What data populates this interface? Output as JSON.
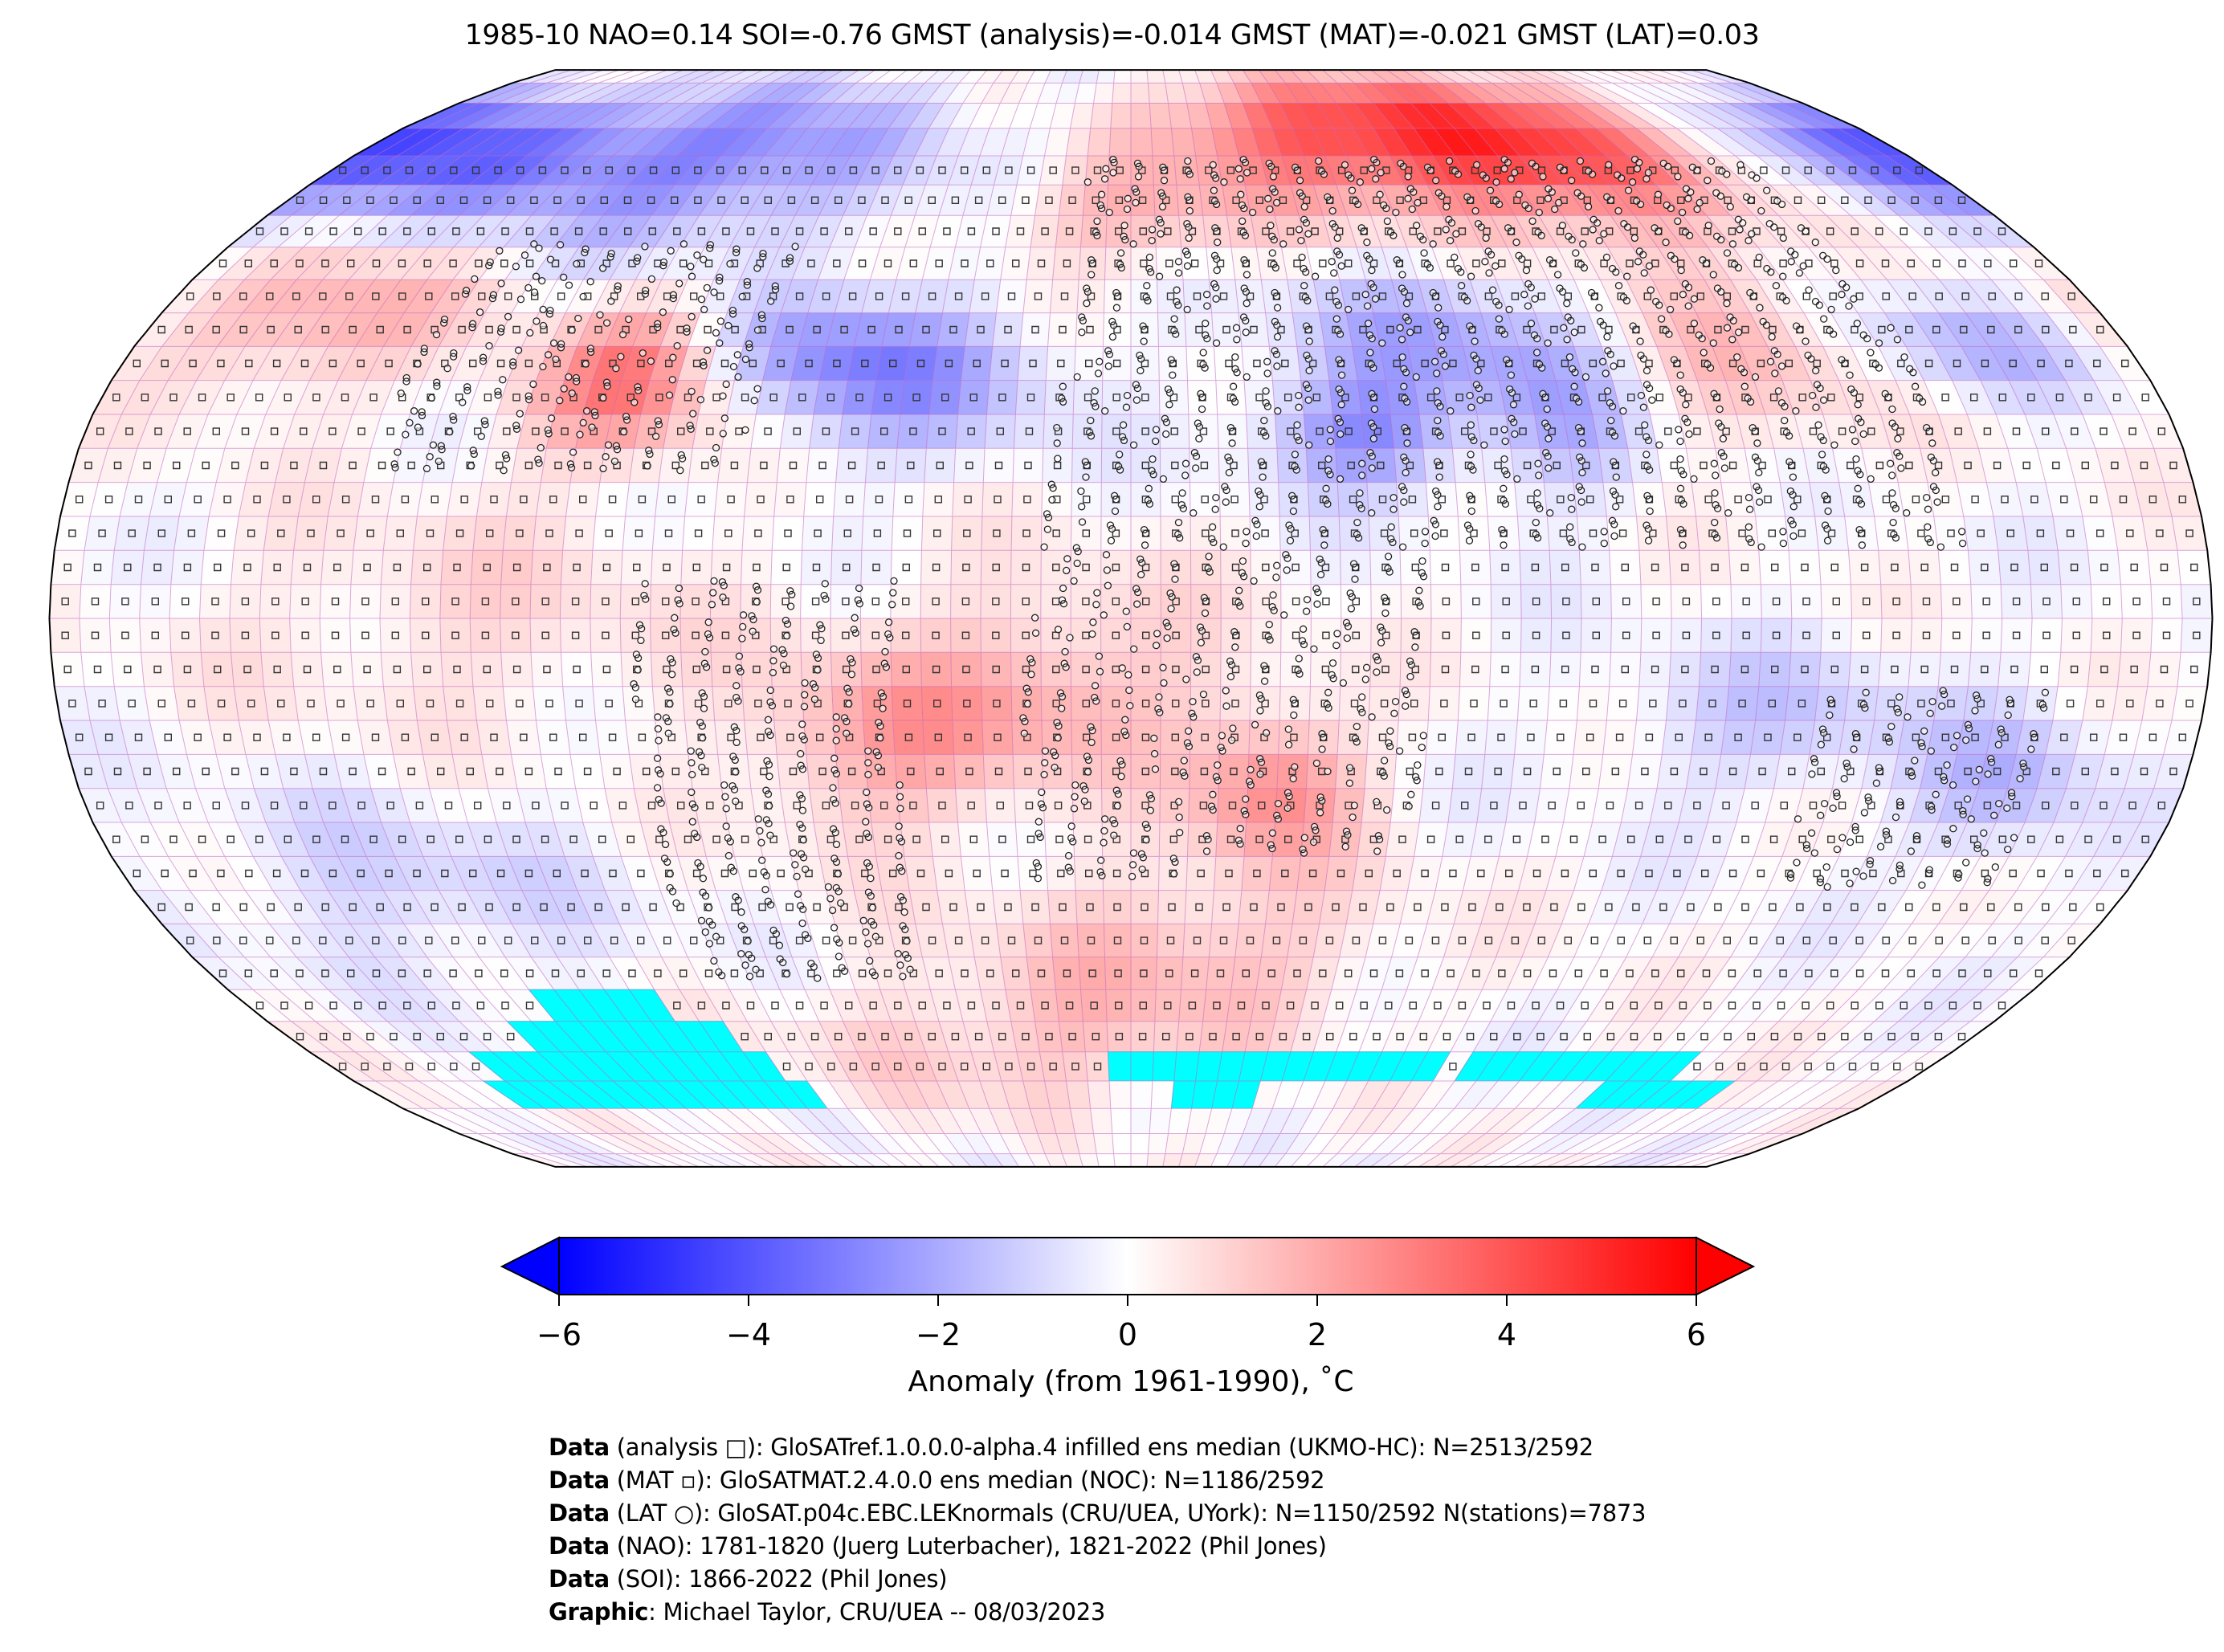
{
  "title": "1985-10 NAO=0.14 SOI=-0.76 GMST (analysis)=-0.014 GMST (MAT)=-0.021 GMST (LAT)=0.03",
  "colors": {
    "negative_max": "#0000ff",
    "positive_max": "#ff0000",
    "neutral": "#ffffff",
    "missing_infill": "#00ffff",
    "gridlines": "#c060c0"
  },
  "colorbar": {
    "min": -6,
    "max": 6,
    "extend": "both",
    "ticks": [
      "−6",
      "−4",
      "−2",
      "0",
      "2",
      "4",
      "6"
    ],
    "label": "Anomaly (from 1961-1990), ˚C"
  },
  "footer": [
    {
      "bold": "Data",
      "text": " (analysis □): GloSATref.1.0.0.0-alpha.4 infilled ens median (UKMO-HC): N=2513/2592"
    },
    {
      "bold": "Data",
      "text": " (MAT ▫): GloSATMAT.2.4.0.0 ens median (NOC): N=1186/2592"
    },
    {
      "bold": "Data",
      "text": " (LAT ○): GloSAT.p04c.EBC.LEKnormals (CRU/UEA, UYork): N=1150/2592 N(stations)=7873"
    },
    {
      "bold": "Data",
      "text": " (NAO): 1781-1820 (Juerg Luterbacher), 1821-2022 (Phil Jones)"
    },
    {
      "bold": "Data",
      "text": " (SOI): 1866-2022 (Phil Jones)"
    },
    {
      "bold": "Graphic",
      "text": ": Michael Taylor, CRU/UEA -- 08/03/2023"
    }
  ]
}
